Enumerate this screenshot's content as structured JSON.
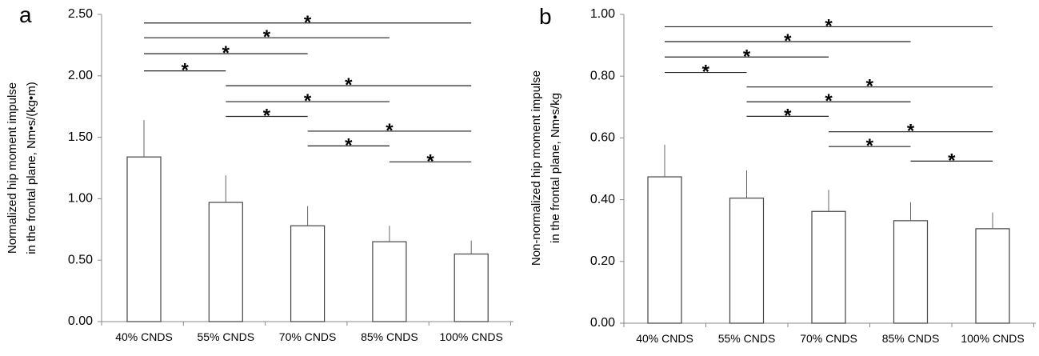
{
  "chart_data": [
    {
      "type": "bar",
      "panel_label": "a",
      "categories": [
        "40% CNDS",
        "55% CNDS",
        "70% CNDS",
        "85% CNDS",
        "100% CNDS"
      ],
      "values": [
        1.34,
        0.97,
        0.78,
        0.65,
        0.55
      ],
      "errors": [
        0.3,
        0.22,
        0.16,
        0.13,
        0.11
      ],
      "ylabel": [
        "Normalized hip moment impulse",
        "in the frontal plane, Nm•s/(kg•m)"
      ],
      "ylim": [
        0,
        2.5
      ],
      "yticks": [
        "0.00",
        "0.50",
        "1.00",
        "1.50",
        "2.00",
        "2.50"
      ],
      "significance_marker": "*",
      "significance": [
        {
          "from": 0,
          "to": 4,
          "level": 2.43
        },
        {
          "from": 0,
          "to": 3,
          "level": 2.31
        },
        {
          "from": 0,
          "to": 2,
          "level": 2.18
        },
        {
          "from": 0,
          "to": 1,
          "level": 2.04
        },
        {
          "from": 1,
          "to": 4,
          "level": 1.92
        },
        {
          "from": 1,
          "to": 3,
          "level": 1.79
        },
        {
          "from": 1,
          "to": 2,
          "level": 1.67
        },
        {
          "from": 2,
          "to": 4,
          "level": 1.55
        },
        {
          "from": 2,
          "to": 3,
          "level": 1.43
        },
        {
          "from": 3,
          "to": 4,
          "level": 1.3
        }
      ],
      "grid": false
    },
    {
      "type": "bar",
      "panel_label": "b",
      "categories": [
        "40% CNDS",
        "55% CNDS",
        "70% CNDS",
        "85% CNDS",
        "100% CNDS"
      ],
      "values": [
        0.474,
        0.405,
        0.362,
        0.332,
        0.306
      ],
      "errors": [
        0.104,
        0.09,
        0.07,
        0.06,
        0.052
      ],
      "ylabel": [
        "Non-normalized hip moment impulse",
        "in the frontal plane, Nm•s/kg"
      ],
      "ylim": [
        0,
        1.0
      ],
      "yticks": [
        "0.00",
        "0.20",
        "0.40",
        "0.60",
        "0.80",
        "1.00"
      ],
      "significance_marker": "*",
      "significance": [
        {
          "from": 0,
          "to": 4,
          "level": 0.96
        },
        {
          "from": 0,
          "to": 3,
          "level": 0.912
        },
        {
          "from": 0,
          "to": 2,
          "level": 0.862
        },
        {
          "from": 0,
          "to": 1,
          "level": 0.812
        },
        {
          "from": 1,
          "to": 4,
          "level": 0.765
        },
        {
          "from": 1,
          "to": 3,
          "level": 0.717
        },
        {
          "from": 1,
          "to": 2,
          "level": 0.67
        },
        {
          "from": 2,
          "to": 4,
          "level": 0.62
        },
        {
          "from": 2,
          "to": 3,
          "level": 0.572
        },
        {
          "from": 3,
          "to": 4,
          "level": 0.525
        }
      ],
      "grid": false
    }
  ]
}
